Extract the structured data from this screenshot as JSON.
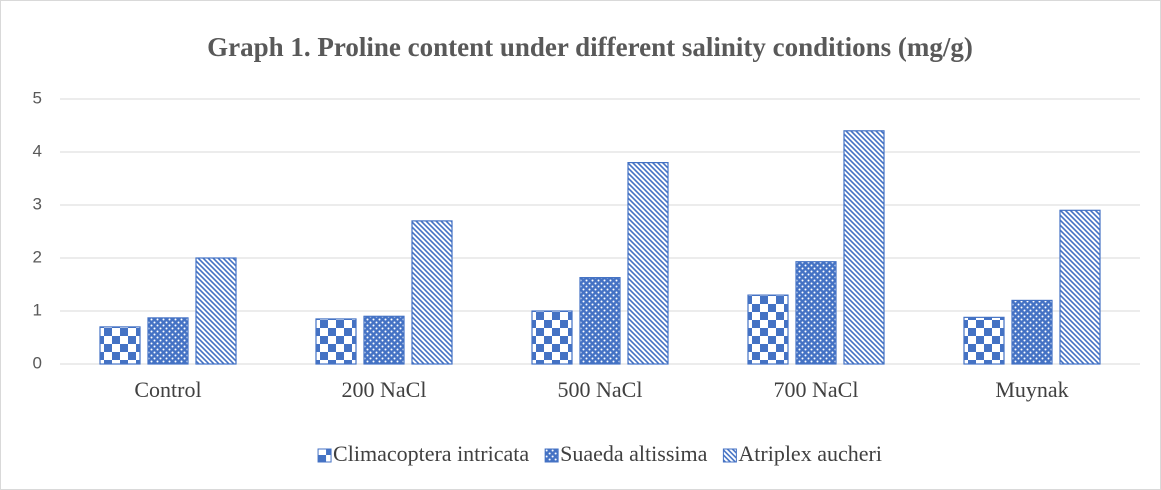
{
  "chart_data": {
    "type": "bar",
    "title": "Graph 1. Proline content under different salinity conditions (mg/g)",
    "categories": [
      "Control",
      "200 NaCl",
      "500 NaCl",
      "700 NaCl",
      "Muynak"
    ],
    "series": [
      {
        "name": "Climacoptera intricata",
        "color": "#4472c4",
        "pattern": "checker",
        "values": [
          0.7,
          0.85,
          1.0,
          1.3,
          0.88
        ]
      },
      {
        "name": "Suaeda altissima",
        "color": "#4472c4",
        "pattern": "dots",
        "values": [
          0.87,
          0.9,
          1.63,
          1.93,
          1.2
        ]
      },
      {
        "name": "Atriplex aucheri",
        "color": "#4472c4",
        "pattern": "diagonal",
        "values": [
          2.0,
          2.7,
          3.8,
          4.4,
          2.9
        ]
      }
    ],
    "ylim": [
      0,
      5
    ],
    "yticks": [
      0,
      1,
      2,
      3,
      4,
      5
    ],
    "grid": true,
    "legend": "bottom"
  }
}
